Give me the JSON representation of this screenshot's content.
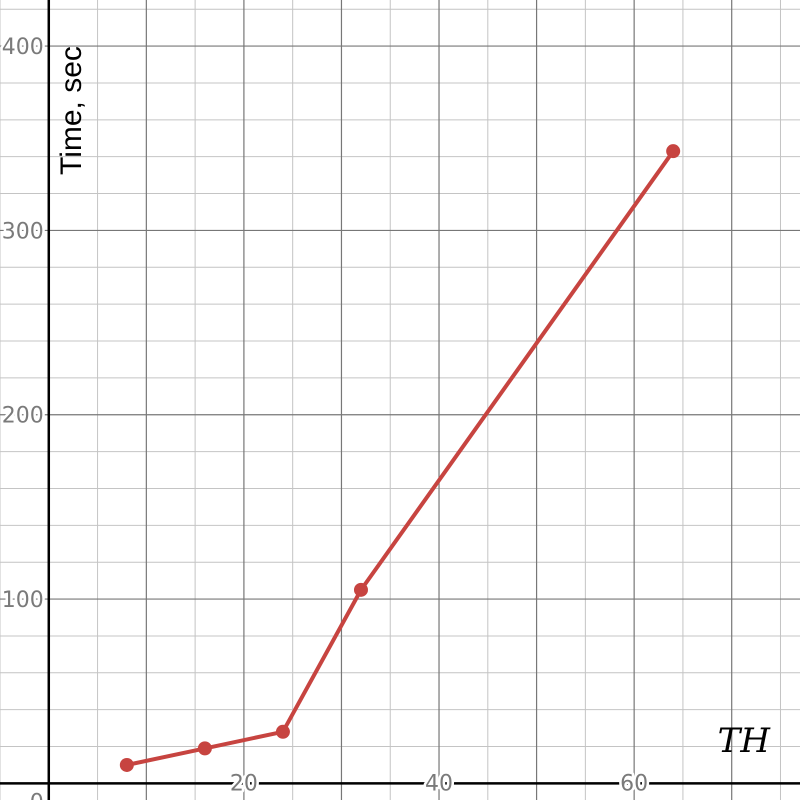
{
  "chart_data": {
    "type": "line",
    "xlabel": "TH",
    "ylabel": "Time, sec",
    "xlim": [
      -5,
      77
    ],
    "ylim": [
      -9,
      425
    ],
    "x_ticks": [
      20,
      40,
      60
    ],
    "y_ticks": [
      100,
      200,
      300,
      400
    ],
    "origin_label": "0",
    "grid": true,
    "series": [
      {
        "color": "#c74440",
        "x": [
          8,
          16,
          24,
          32,
          64
        ],
        "y": [
          10,
          19,
          28,
          105,
          343
        ]
      }
    ]
  }
}
